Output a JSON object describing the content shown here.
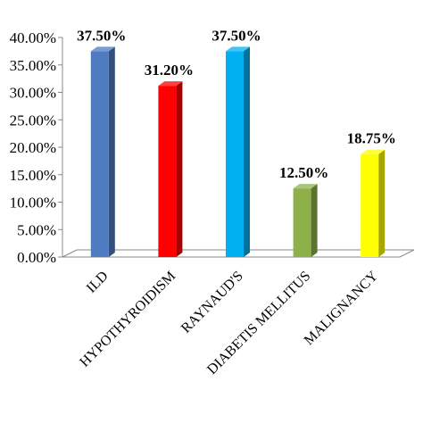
{
  "chart_data": {
    "type": "bar",
    "categories": [
      "ILD",
      "HYPOTHYROIDISM",
      "RAYNAUD'S",
      "DIABETIS MELLITUS",
      "MALIGNANCY"
    ],
    "values": [
      37.5,
      31.2,
      37.5,
      12.5,
      18.75
    ],
    "data_labels": [
      "37.50%",
      "31.20%",
      "37.50%",
      "12.50%",
      "18.75%"
    ],
    "colors": [
      "#4F7BC0",
      "#FF0000",
      "#00B0F0",
      "#8DB04B",
      "#FFFF00"
    ],
    "ylim": [
      0,
      40
    ],
    "yticks": [
      0,
      5,
      10,
      15,
      20,
      25,
      30,
      35,
      40
    ],
    "ytick_labels": [
      "0.00%",
      "5.00%",
      "10.00%",
      "15.00%",
      "20.00%",
      "25.00%",
      "30.00%",
      "35.00%",
      "40.00%"
    ],
    "grid": false,
    "legend": "none",
    "style": "3d-column"
  }
}
